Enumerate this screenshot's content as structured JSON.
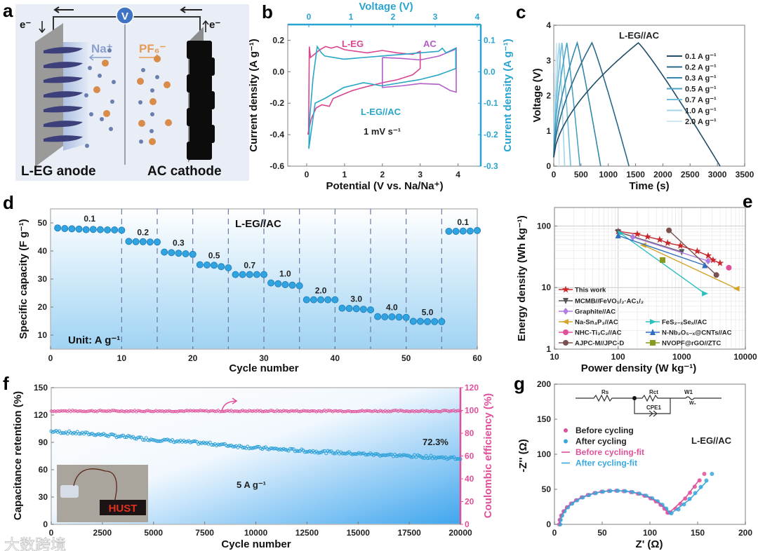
{
  "panel_labels": {
    "a": "a",
    "b": "b",
    "c": "c",
    "d": "d",
    "e": "e",
    "f": "f",
    "g": "g"
  },
  "schematic": {
    "electron_left": "e⁻",
    "electron_right": "e⁻",
    "voltmeter": "V",
    "cation": "Na⁺",
    "anion": "PF₆⁻",
    "anode_label": "L-EG anode",
    "cathode_label": "AC cathode",
    "colors": {
      "cation": "#8a9fd0",
      "anion": "#e89a55",
      "background": "#e9eef6"
    }
  },
  "watermark": "大数跨境",
  "chart_data": [
    {
      "id": "b",
      "type": "line",
      "xlabel": "Potential (V vs. Na/Na⁺)",
      "ylabel": "Current density (A g⁻¹)",
      "x2label": "Voltage (V)",
      "y2label": "Current density (A g⁻¹)",
      "xlim": [
        -0.5,
        4.6
      ],
      "ylim": [
        -0.6,
        0.3
      ],
      "x2lim": [
        -0.5,
        4.083
      ],
      "y2lim": [
        -0.3,
        0.15
      ],
      "xticks": [
        0,
        1,
        2,
        3,
        4
      ],
      "yticks": [
        "0.2",
        "0.0",
        "-0.2",
        "-0.4",
        "-0.6"
      ],
      "x2ticks": [
        0,
        1,
        2,
        3,
        4
      ],
      "y2ticks": [
        "0.1",
        "0.0",
        "-0.1",
        "-0.2",
        "-0.3"
      ],
      "annotations": {
        "leg": "L-EG",
        "ac": "AC",
        "full": "L-EG//AC",
        "rate": "1 mV s⁻¹"
      },
      "series": [
        {
          "name": "L-EG",
          "color": "#d9458f",
          "axes": "primary",
          "points": [
            [
              0.05,
              -0.4
            ],
            [
              0.07,
              0.16
            ],
            [
              0.1,
              0.09
            ],
            [
              0.2,
              0.11
            ],
            [
              0.35,
              0.14
            ],
            [
              0.5,
              0.16
            ],
            [
              0.65,
              0.15
            ],
            [
              0.8,
              0.16
            ],
            [
              1.0,
              0.14
            ],
            [
              1.3,
              0.13
            ],
            [
              1.6,
              0.12
            ],
            [
              2.0,
              0.135
            ],
            [
              2.4,
              0.12
            ],
            [
              2.8,
              0.11
            ],
            [
              3.0,
              0.13
            ],
            [
              3.0,
              0.02
            ],
            [
              2.8,
              -0.02
            ],
            [
              2.4,
              -0.05
            ],
            [
              2.0,
              -0.07
            ],
            [
              1.5,
              -0.1
            ],
            [
              1.2,
              -0.12
            ],
            [
              1.0,
              -0.14
            ],
            [
              0.7,
              -0.17
            ],
            [
              0.6,
              -0.22
            ],
            [
              0.4,
              -0.21
            ],
            [
              0.25,
              -0.23
            ],
            [
              0.12,
              -0.3
            ],
            [
              0.03,
              -0.4
            ]
          ]
        },
        {
          "name": "AC",
          "color": "#b45cc8",
          "axes": "primary",
          "points": [
            [
              2.0,
              0.09
            ],
            [
              2.5,
              0.085
            ],
            [
              3.0,
              0.075
            ],
            [
              3.5,
              0.1
            ],
            [
              3.9,
              0.14
            ],
            [
              3.95,
              0.15
            ],
            [
              3.95,
              -0.13
            ],
            [
              3.8,
              -0.12
            ],
            [
              3.5,
              -0.08
            ],
            [
              3.0,
              -0.075
            ],
            [
              2.5,
              -0.09
            ],
            [
              2.0,
              -0.1
            ],
            [
              2.0,
              0.09
            ]
          ]
        },
        {
          "name": "L-EG//AC",
          "color": "#27a6c8",
          "axes": "secondary",
          "points": [
            [
              0.0,
              -0.245
            ],
            [
              0.02,
              -0.15
            ],
            [
              0.1,
              -0.02
            ],
            [
              0.2,
              0.08
            ],
            [
              0.3,
              0.06
            ],
            [
              0.38,
              0.05
            ],
            [
              0.83,
              0.04
            ],
            [
              1.73,
              0.05
            ],
            [
              2.63,
              0.06
            ],
            [
              3.08,
              0.065
            ],
            [
              3.17,
              0.075
            ],
            [
              3.26,
              0.06
            ],
            [
              3.49,
              0.075
            ],
            [
              3.49,
              0.01
            ],
            [
              3.08,
              -0.01
            ],
            [
              2.63,
              -0.025
            ],
            [
              1.73,
              -0.045
            ],
            [
              1.3,
              -0.035
            ],
            [
              0.83,
              -0.05
            ],
            [
              0.38,
              -0.085
            ],
            [
              0.15,
              -0.1
            ],
            [
              0.0,
              -0.245
            ]
          ]
        }
      ]
    },
    {
      "id": "c",
      "type": "line",
      "title": "L-EG//AC",
      "xlabel": "Time (s)",
      "ylabel": "Voltage (V)",
      "xlim": [
        0,
        3500
      ],
      "ylim": [
        0,
        4
      ],
      "xticks": [
        0,
        500,
        1000,
        1500,
        2000,
        2500,
        3000,
        3500
      ],
      "yticks": [
        0,
        1,
        2,
        3,
        4
      ],
      "max_voltage": 3.5,
      "series": [
        {
          "name": "0.1 A g⁻¹",
          "color": "#1f4d66",
          "charge_end_s": 1550,
          "discharge_end_s": 3050
        },
        {
          "name": "0.2 A g⁻¹",
          "color": "#2a6888",
          "charge_end_s": 700,
          "discharge_end_s": 1380
        },
        {
          "name": "0.3 A g⁻¹",
          "color": "#3488ad",
          "charge_end_s": 430,
          "discharge_end_s": 860
        },
        {
          "name": "0.5 A g⁻¹",
          "color": "#4aa3c6",
          "charge_end_s": 240,
          "discharge_end_s": 480
        },
        {
          "name": "0.7 A g⁻¹",
          "color": "#72bddb",
          "charge_end_s": 150,
          "discharge_end_s": 310
        },
        {
          "name": "1.0 A g⁻¹",
          "color": "#a3d4ea",
          "charge_end_s": 100,
          "discharge_end_s": 200
        },
        {
          "name": "2.0 A g⁻¹",
          "color": "#cfe7f2",
          "charge_end_s": 50,
          "discharge_end_s": 100
        }
      ]
    },
    {
      "id": "d",
      "type": "scatter",
      "title": "L-EG//AC",
      "xlabel": "Cycle number",
      "ylabel": "Specific capacity (F g⁻¹)",
      "unit_note": "Unit: A g⁻¹",
      "xlim": [
        0,
        60
      ],
      "ylim": [
        5,
        55
      ],
      "xticks": [
        0,
        10,
        20,
        30,
        40,
        50,
        60
      ],
      "yticks": [
        10,
        20,
        30,
        40,
        50
      ],
      "color": "#2fa4e0",
      "segments": [
        {
          "rate": "0.1",
          "cycles": [
            1,
            10
          ],
          "values": [
            48.2,
            48,
            47.9,
            47.8,
            47.6,
            47.7,
            47.6,
            47.5,
            47.5,
            47.4
          ]
        },
        {
          "rate": "0.2",
          "cycles": [
            11,
            15
          ],
          "values": [
            43.4,
            43.3,
            43.3,
            43.2,
            43.2
          ]
        },
        {
          "rate": "0.3",
          "cycles": [
            16,
            20
          ],
          "values": [
            39.6,
            39.4,
            39.2,
            39,
            38.8
          ]
        },
        {
          "rate": "0.5",
          "cycles": [
            21,
            25
          ],
          "values": [
            35.1,
            35,
            34.9,
            34.4,
            34
          ]
        },
        {
          "rate": "0.7",
          "cycles": [
            26,
            30
          ],
          "values": [
            31.6,
            31.6,
            31.6,
            31.6,
            31.6
          ]
        },
        {
          "rate": "1.0",
          "cycles": [
            31,
            35
          ],
          "values": [
            28.6,
            28.3,
            28,
            27.8,
            27.6
          ]
        },
        {
          "rate": "2.0",
          "cycles": [
            36,
            40
          ],
          "values": [
            22.6,
            22.6,
            22.6,
            22.6,
            22.6
          ]
        },
        {
          "rate": "3.0",
          "cycles": [
            41,
            45
          ],
          "values": [
            19.6,
            19.5,
            19.4,
            19.2,
            19
          ]
        },
        {
          "rate": "4.0",
          "cycles": [
            46,
            50
          ],
          "values": [
            16.6,
            16.5,
            16.5,
            16.4,
            16.3
          ]
        },
        {
          "rate": "5.0",
          "cycles": [
            51,
            55
          ],
          "values": [
            14.9,
            14.9,
            14.8,
            14.8,
            14.8
          ]
        },
        {
          "rate": "0.1",
          "cycles": [
            56,
            60
          ],
          "values": [
            47,
            47,
            47.1,
            47.1,
            47.3
          ]
        }
      ]
    },
    {
      "id": "e",
      "type": "line",
      "xlabel": "Power density (W kg⁻¹)",
      "ylabel": "Energy density (Wh kg⁻¹)",
      "xscale": "log",
      "yscale": "log",
      "xlim": [
        10,
        10000
      ],
      "ylim": [
        1,
        200
      ],
      "xticks": [
        10,
        100,
        1000,
        10000
      ],
      "yticks": [
        1,
        10,
        100
      ],
      "grid": true,
      "legend_position": "bottom-left",
      "series": [
        {
          "name": "This work",
          "color": "#c8282d",
          "marker": "star",
          "points": [
            [
              100,
              82
            ],
            [
              200,
              74
            ],
            [
              290,
              67
            ],
            [
              450,
              60
            ],
            [
              600,
              53
            ],
            [
              950,
              48
            ],
            [
              1750,
              39
            ],
            [
              2600,
              33
            ],
            [
              3100,
              28
            ],
            [
              4000,
              25
            ]
          ]
        },
        {
          "name": "MCMB//FeVO₁/₂·AC₁/₂",
          "color": "#555555",
          "marker": "tri-down",
          "points": [
            [
              100,
              80
            ],
            [
              1000,
              38
            ]
          ]
        },
        {
          "name": "Graphite//AC",
          "color": "#b07ee0",
          "marker": "diamond",
          "points": [
            [
              170,
              66
            ],
            [
              2600,
              27
            ]
          ]
        },
        {
          "name": "Na-Sn₄P₃//AC",
          "color": "#d4a52a",
          "marker": "tri-left",
          "points": [
            [
              250,
              49
            ],
            [
              7300,
              9.6
            ]
          ]
        },
        {
          "name": "NHC-Ti₃C₂//AC",
          "color": "#e0509a",
          "marker": "circle",
          "points": [
            [
              5500,
              21
            ]
          ]
        },
        {
          "name": "AJPC-M//JPC-D",
          "color": "#7a5050",
          "marker": "circle",
          "points": [
            [
              630,
              85
            ],
            [
              3500,
              16
            ]
          ]
        },
        {
          "name": "FeS₂₋ₓSeₓ//AC",
          "color": "#2bc0c0",
          "marker": "tri-right",
          "points": [
            [
              110,
              76
            ],
            [
              2300,
              8
            ]
          ]
        },
        {
          "name": "N-Nb₂O₅₋ₓ@CNTs//AC",
          "color": "#2f6fc0",
          "marker": "tri-up",
          "points": [
            [
              100,
              70
            ],
            [
              2300,
              23
            ]
          ]
        },
        {
          "name": "NVOPF@rGO//ZTC",
          "color": "#8a9a20",
          "marker": "square",
          "points": [
            [
              500,
              28
            ]
          ]
        }
      ]
    },
    {
      "id": "f",
      "type": "scatter",
      "xlabel": "Cycle number",
      "ylabel": "Capacitance retention (%)",
      "y2label": "Coulombic efficiency (%)",
      "xlim": [
        0,
        20000
      ],
      "ylim": [
        0,
        150
      ],
      "y2lim": [
        0,
        120
      ],
      "xticks": [
        0,
        2500,
        5000,
        7500,
        10000,
        12500,
        15000,
        17500,
        20000
      ],
      "yticks": [
        0,
        30,
        60,
        90,
        120,
        150
      ],
      "y2ticks": [
        0,
        20,
        40,
        60,
        80,
        100,
        120
      ],
      "annotations": {
        "final_retention": "72.3%",
        "rate": "5 A g⁻¹",
        "inset_text": "HUST"
      },
      "series": [
        {
          "name": "Capacitance retention",
          "color": "#2a9fd8",
          "axes": "primary",
          "points": [
            [
              0,
              102
            ],
            [
              2500,
              98.5
            ],
            [
              5000,
              93
            ],
            [
              7500,
              89
            ],
            [
              10000,
              84
            ],
            [
              12500,
              80.5
            ],
            [
              15000,
              77.5
            ],
            [
              17500,
              75
            ],
            [
              20000,
              72.3
            ]
          ]
        },
        {
          "name": "Coulombic efficiency",
          "color": "#e0509a",
          "axes": "secondary",
          "points": [
            [
              0,
              99.5
            ],
            [
              20000,
              99.5
            ]
          ]
        }
      ]
    },
    {
      "id": "g",
      "type": "scatter",
      "xlabel": "Z' (Ω)",
      "ylabel": "-Z'' (Ω)",
      "title": "L-EG//AC",
      "xlim": [
        0,
        200
      ],
      "ylim": [
        0,
        200
      ],
      "xticks": [
        0,
        50,
        100,
        150,
        200
      ],
      "yticks": [
        0,
        50,
        100,
        150,
        200
      ],
      "circuit": {
        "rs": "Rs",
        "rct": "Rct",
        "w": "W1",
        "wo": "W₀",
        "cpe": "CPE1"
      },
      "legend_position": "top-left",
      "series": [
        {
          "name": "Before cycling",
          "color": "#e0509a",
          "kind": "points",
          "rs": 5,
          "rct_end": 122,
          "arc_peak": 48,
          "tail": [
            [
              122,
              17
            ],
            [
              157,
              72
            ]
          ]
        },
        {
          "name": "After cycling",
          "color": "#3aa8dc",
          "kind": "points",
          "rs": 6,
          "rct_end": 124,
          "arc_peak": 48,
          "tail": [
            [
              124,
              16
            ],
            [
              165,
              72
            ]
          ]
        },
        {
          "name": "Before cycling-fit",
          "color": "#e0509a",
          "kind": "line",
          "rs": 5,
          "rct_end": 122,
          "arc_peak": 48,
          "tail": [
            [
              122,
              17
            ],
            [
              152,
              64
            ]
          ]
        },
        {
          "name": "After cycling-fit",
          "color": "#3aa8dc",
          "kind": "line",
          "rs": 6,
          "rct_end": 124,
          "arc_peak": 48,
          "tail": [
            [
              124,
              16
            ],
            [
              160,
              62
            ]
          ]
        }
      ]
    }
  ]
}
